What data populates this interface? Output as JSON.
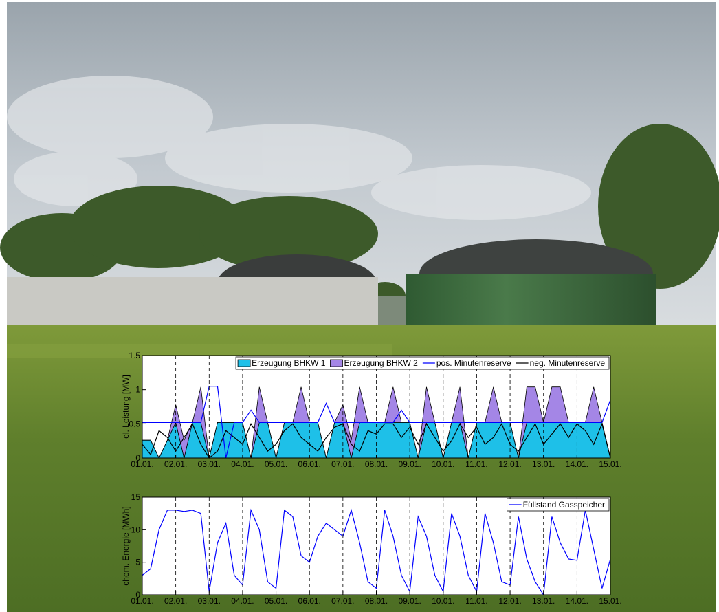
{
  "chart_data": [
    {
      "type": "area",
      "ylabel": "el. Leistung [MW]",
      "x": [
        1,
        1.25,
        1.5,
        1.75,
        2,
        2.25,
        2.5,
        2.75,
        3,
        3.25,
        3.5,
        3.75,
        4,
        4.25,
        4.5,
        4.75,
        5,
        5.25,
        5.5,
        5.75,
        6,
        6.25,
        6.5,
        6.75,
        7,
        7.25,
        7.5,
        7.75,
        8,
        8.25,
        8.5,
        8.75,
        9,
        9.25,
        9.5,
        9.75,
        10,
        10.25,
        10.5,
        10.75,
        11,
        11.25,
        11.5,
        11.75,
        12,
        12.25,
        12.5,
        12.75,
        13,
        13.25,
        13.5,
        13.75,
        14,
        14.25,
        14.5,
        14.75,
        15
      ],
      "xlim": [
        1,
        15
      ],
      "xticks": [
        {
          "value": 1,
          "label": "01.01."
        },
        {
          "value": 2,
          "label": "02.01."
        },
        {
          "value": 3,
          "label": "03.01."
        },
        {
          "value": 4,
          "label": "04.01."
        },
        {
          "value": 5,
          "label": "05.01."
        },
        {
          "value": 6,
          "label": "06.01."
        },
        {
          "value": 7,
          "label": "07.01."
        },
        {
          "value": 8,
          "label": "08.01."
        },
        {
          "value": 9,
          "label": "09.01."
        },
        {
          "value": 10,
          "label": "10.01."
        },
        {
          "value": 11,
          "label": "11.01."
        },
        {
          "value": 12,
          "label": "12.01."
        },
        {
          "value": 13,
          "label": "13.01."
        },
        {
          "value": 14,
          "label": "14.01."
        },
        {
          "value": 15,
          "label": "15.01."
        }
      ],
      "ylim": [
        0,
        1.5
      ],
      "yticks": [
        0,
        0.5,
        1,
        1.5
      ],
      "xgrid": true,
      "legend": "upper right",
      "series": [
        {
          "name": "Erzeugung BHKW 1",
          "style": "area",
          "color": "#1ec0e8",
          "values": [
            0.26,
            0.26,
            0,
            0.26,
            0.52,
            0,
            0.52,
            0.52,
            0,
            0.52,
            0.52,
            0.52,
            0.52,
            0,
            0.52,
            0.52,
            0,
            0.52,
            0.52,
            0.52,
            0.52,
            0.52,
            0,
            0.52,
            0.52,
            0,
            0.52,
            0.52,
            0.52,
            0.52,
            0.52,
            0.52,
            0.52,
            0,
            0.52,
            0.52,
            0,
            0.52,
            0.52,
            0,
            0.52,
            0.52,
            0.52,
            0.52,
            0.52,
            0,
            0.52,
            0.52,
            0.52,
            0.52,
            0.52,
            0.52,
            0.52,
            0.52,
            0.52,
            0.52,
            0
          ]
        },
        {
          "name": "Erzeugung BHKW 2",
          "style": "area",
          "color": "#a486e6",
          "values": [
            0,
            0,
            0,
            0,
            0.26,
            0.26,
            0,
            0.52,
            0,
            0,
            0,
            0,
            0,
            0,
            0.52,
            0,
            0,
            0,
            0,
            0.52,
            0,
            0,
            0,
            0,
            0.26,
            0.26,
            0.52,
            0,
            0,
            0,
            0.52,
            0,
            0,
            0,
            0.52,
            0,
            0,
            0,
            0.52,
            0,
            0,
            0,
            0.52,
            0,
            0,
            0,
            0.52,
            0.52,
            0,
            0.52,
            0.52,
            0,
            0,
            0,
            0.52,
            0,
            0
          ]
        },
        {
          "name": "pos. Minutenreserve",
          "style": "line",
          "color": "#0000ff",
          "values": [
            0.52,
            0.52,
            0.52,
            0.52,
            0.52,
            0.52,
            0.52,
            0.52,
            1.05,
            1.05,
            0,
            0.52,
            0.52,
            0.7,
            0.52,
            0.52,
            0.52,
            0.52,
            0.52,
            0.52,
            0.52,
            0.52,
            0.8,
            0.52,
            0.52,
            0.52,
            0.52,
            0.52,
            0.52,
            0.52,
            0.52,
            0.7,
            0.52,
            0.52,
            0.52,
            0.52,
            0.52,
            0.52,
            0.52,
            0.52,
            0.52,
            0.52,
            0.52,
            0.52,
            0.52,
            0.52,
            0.52,
            0.52,
            0.52,
            0.52,
            0.52,
            0.52,
            0.52,
            0.52,
            0.52,
            0.52,
            0.85
          ]
        },
        {
          "name": "neg. Minutenreserve",
          "style": "line",
          "color": "#000000",
          "values": [
            0.2,
            0.05,
            0.4,
            0.3,
            0.1,
            0.3,
            0.5,
            0.2,
            0,
            0.1,
            0.4,
            0.3,
            0.2,
            0.5,
            0.3,
            0.1,
            0.2,
            0.4,
            0.5,
            0.3,
            0.2,
            0.1,
            0.3,
            0.45,
            0.5,
            0.2,
            0.1,
            0.4,
            0.35,
            0.5,
            0.5,
            0.3,
            0.45,
            0.2,
            0.5,
            0.3,
            0.1,
            0.25,
            0.5,
            0.3,
            0.45,
            0.2,
            0.3,
            0.5,
            0.2,
            0.1,
            0.3,
            0.5,
            0.2,
            0.35,
            0.5,
            0.3,
            0.5,
            0.4,
            0.2,
            0.5,
            0
          ]
        }
      ]
    },
    {
      "type": "line",
      "ylabel": "chem. Energie [MWh]",
      "x": [
        1,
        1.25,
        1.5,
        1.75,
        2,
        2.25,
        2.5,
        2.75,
        3,
        3.25,
        3.5,
        3.75,
        4,
        4.25,
        4.5,
        4.75,
        5,
        5.25,
        5.5,
        5.75,
        6,
        6.25,
        6.5,
        6.75,
        7,
        7.25,
        7.5,
        7.75,
        8,
        8.25,
        8.5,
        8.75,
        9,
        9.25,
        9.5,
        9.75,
        10,
        10.25,
        10.5,
        10.75,
        11,
        11.25,
        11.5,
        11.75,
        12,
        12.25,
        12.5,
        12.75,
        13,
        13.25,
        13.5,
        13.75,
        14,
        14.25,
        14.5,
        14.75,
        15
      ],
      "xlim": [
        1,
        15
      ],
      "xticks": [
        {
          "value": 1,
          "label": "01.01."
        },
        {
          "value": 2,
          "label": "02.01."
        },
        {
          "value": 3,
          "label": "03.01."
        },
        {
          "value": 4,
          "label": "04.01."
        },
        {
          "value": 5,
          "label": "05.01."
        },
        {
          "value": 6,
          "label": "06.01."
        },
        {
          "value": 7,
          "label": "07.01."
        },
        {
          "value": 8,
          "label": "08.01."
        },
        {
          "value": 9,
          "label": "09.01."
        },
        {
          "value": 10,
          "label": "10.01."
        },
        {
          "value": 11,
          "label": "11.01."
        },
        {
          "value": 12,
          "label": "12.01."
        },
        {
          "value": 13,
          "label": "13.01."
        },
        {
          "value": 14,
          "label": "14.01."
        },
        {
          "value": 15,
          "label": "15.01."
        }
      ],
      "ylim": [
        0,
        15
      ],
      "yticks": [
        0,
        5,
        10,
        15
      ],
      "xgrid": true,
      "legend": "upper right",
      "series": [
        {
          "name": "Füllstand Gasspeicher",
          "style": "line",
          "color": "#0000ff",
          "values": [
            3,
            4,
            10,
            13,
            13,
            12.8,
            13,
            12.5,
            0.5,
            8,
            11,
            3,
            1.5,
            13,
            10,
            2,
            1,
            13,
            12,
            6,
            5,
            9,
            11,
            10,
            9,
            13,
            8,
            2,
            1,
            13,
            9,
            3,
            0.5,
            12,
            9,
            3,
            0.5,
            12.5,
            9,
            3,
            0.5,
            12.5,
            8,
            2,
            1.5,
            12,
            5.5,
            2,
            0,
            12,
            8,
            5.5,
            5.3,
            13,
            7,
            1,
            5.5
          ]
        }
      ]
    }
  ]
}
